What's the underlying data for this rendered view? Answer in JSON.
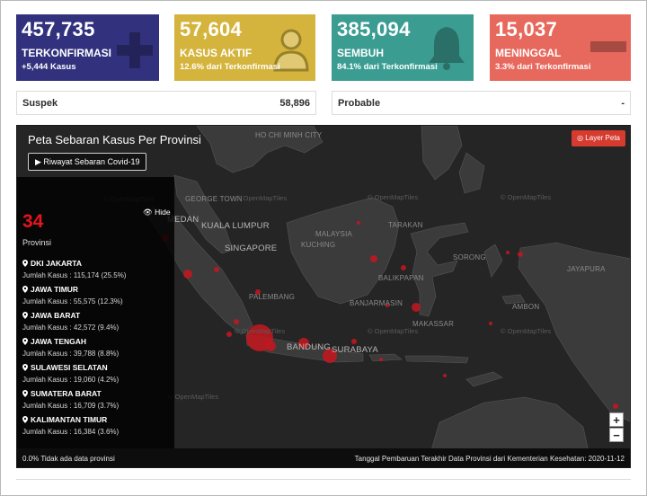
{
  "cards": {
    "confirmed": {
      "number": "457,735",
      "label": "TERKONFIRMASI",
      "sub": "+5,444 Kasus",
      "icon": "plus-icon",
      "color": "#31317e"
    },
    "active": {
      "number": "57,604",
      "label": "KASUS AKTIF",
      "sub": "12.6% dari Terkonfirmasi",
      "icon": "doctor-icon",
      "color": "#d4b43c"
    },
    "recovered": {
      "number": "385,094",
      "label": "SEMBUH",
      "sub": "84.1% dari Terkonfirmasi",
      "icon": "bell-icon",
      "color": "#3b9d92"
    },
    "deaths": {
      "number": "15,037",
      "label": "MENINGGAL",
      "sub": "3.3% dari Terkonfirmasi",
      "icon": "minus-icon",
      "color": "#e7685c"
    }
  },
  "stats": {
    "suspek": {
      "label": "Suspek",
      "value": "58,896"
    },
    "probable": {
      "label": "Probable",
      "value": "-"
    }
  },
  "map": {
    "title": "Peta Sebaran Kasus Per Provinsi",
    "riwayat_button": "▶ Riwayat Sebaran Covid-19",
    "layer_button": "◎ Layer Peta",
    "hide_label": "👁 Hide",
    "province_count": "34",
    "province_label": "Provinsi",
    "watermark": "© OpenMapTiles",
    "places": {
      "hcm": "HO CHI MINH CITY",
      "medan": "MEDAN",
      "kl": "KUALA LUMPUR",
      "singapore": "SINGAPORE",
      "palembang": "PALEMBANG",
      "georgetown": "GEORGE TOWN",
      "bandung": "BANDUNG",
      "surabaya": "SURABAYA",
      "kuching": "KUCHING",
      "malaysia": "MALAYSIA",
      "tarakan": "TARAKAN",
      "balikpapan": "BALIKPAPAN",
      "banjarmasin": "BANJARMASIN",
      "sorong": "SORONG",
      "ambon": "AMBON",
      "makassar": "MAKASSAR",
      "jayapura": "JAYAPURA"
    },
    "zoom_in": "+",
    "zoom_out": "−",
    "footer_left": "0.0% Tidak ada data provinsi",
    "footer_right": "Tanggal Pembaruan Terakhir Data Provinsi dari Kementerian Kesehatan: 2020-11-12",
    "provinces": [
      {
        "name": "DKI JAKARTA",
        "detail": "Jumlah Kasus : 115,174 (25.5%)"
      },
      {
        "name": "JAWA TIMUR",
        "detail": "Jumlah Kasus : 55,575 (12.3%)"
      },
      {
        "name": "JAWA BARAT",
        "detail": "Jumlah Kasus : 42,572 (9.4%)"
      },
      {
        "name": "JAWA TENGAH",
        "detail": "Jumlah Kasus : 39,788 (8.8%)"
      },
      {
        "name": "SULAWESI SELATAN",
        "detail": "Jumlah Kasus : 19,060 (4.2%)"
      },
      {
        "name": "SUMATERA BARAT",
        "detail": "Jumlah Kasus : 16,709 (3.7%)"
      },
      {
        "name": "KALIMANTAN TIMUR",
        "detail": "Jumlah Kasus : 16,384 (3.6%)"
      }
    ],
    "marker_color": "#c0181f"
  }
}
